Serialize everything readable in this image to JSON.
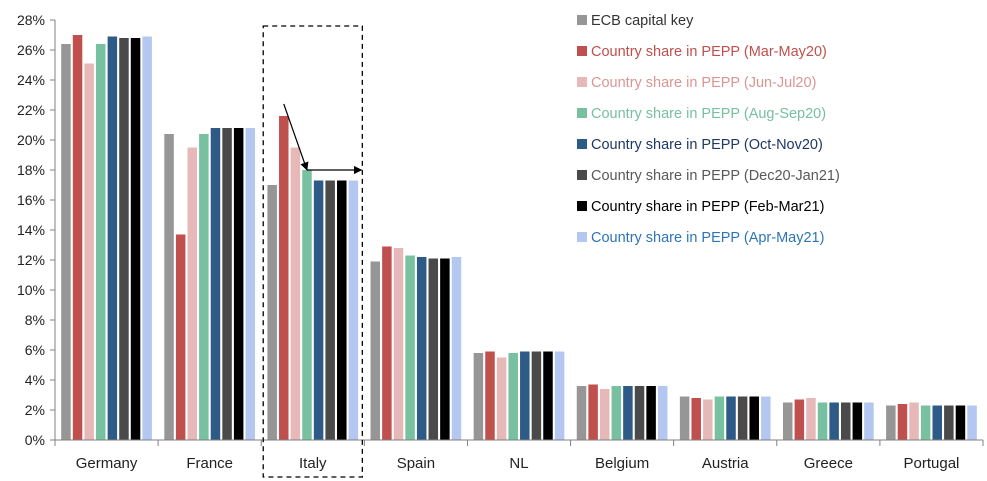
{
  "chart_data": {
    "type": "bar",
    "title": "",
    "xlabel": "",
    "ylabel": "",
    "ylim": [
      0,
      28
    ],
    "ytick_step": 2,
    "y_unit": "%",
    "y_ticks": [
      "0%",
      "2%",
      "4%",
      "6%",
      "8%",
      "10%",
      "12%",
      "14%",
      "16%",
      "18%",
      "20%",
      "22%",
      "24%",
      "26%",
      "28%"
    ],
    "legend_position": "top-right",
    "categories": [
      "Germany",
      "France",
      "Italy",
      "Spain",
      "NL",
      "Belgium",
      "Austria",
      "Greece",
      "Portugal"
    ],
    "highlight_category": "Italy",
    "series": [
      {
        "name": "ECB capital key",
        "color": "#969696",
        "legend_text_color": "#333333",
        "values": [
          26.4,
          20.4,
          17.0,
          11.9,
          5.8,
          3.6,
          2.9,
          2.5,
          2.3
        ]
      },
      {
        "name": "Country share in PEPP (Mar-May20)",
        "color": "#C0504D",
        "legend_text_color": "#C0504D",
        "values": [
          27.0,
          13.7,
          21.6,
          12.9,
          5.9,
          3.7,
          2.8,
          2.7,
          2.4
        ]
      },
      {
        "name": "Country share in PEPP (Jun-Jul20)",
        "color": "#E6B9B8",
        "legend_text_color": "#DA9694",
        "values": [
          25.1,
          19.5,
          19.5,
          12.8,
          5.5,
          3.4,
          2.7,
          2.8,
          2.5
        ]
      },
      {
        "name": "Country share in PEPP (Aug-Sep20)",
        "color": "#77C0A0",
        "legend_text_color": "#77C0A0",
        "values": [
          26.4,
          20.4,
          18.0,
          12.3,
          5.8,
          3.6,
          2.9,
          2.5,
          2.3
        ]
      },
      {
        "name": "Country share in PEPP (Oct-Nov20)",
        "color": "#2D5A87",
        "legend_text_color": "#1F3864",
        "values": [
          26.9,
          20.8,
          17.3,
          12.2,
          5.9,
          3.6,
          2.9,
          2.5,
          2.3
        ]
      },
      {
        "name": "Country share in PEPP (Dec20-Jan21)",
        "color": "#4A4A4A",
        "legend_text_color": "#595959",
        "values": [
          26.8,
          20.8,
          17.3,
          12.1,
          5.9,
          3.6,
          2.9,
          2.5,
          2.3
        ]
      },
      {
        "name": "Country share in PEPP (Feb-Mar21)",
        "color": "#000000",
        "legend_text_color": "#000000",
        "values": [
          26.8,
          20.8,
          17.3,
          12.1,
          5.9,
          3.6,
          2.9,
          2.5,
          2.3
        ]
      },
      {
        "name": "Country share in PEPP (Apr-May21)",
        "color": "#B4C7F0",
        "legend_text_color": "#2E75B6",
        "values": [
          26.9,
          20.8,
          17.3,
          12.2,
          5.9,
          3.6,
          2.9,
          2.5,
          2.3
        ]
      }
    ]
  }
}
